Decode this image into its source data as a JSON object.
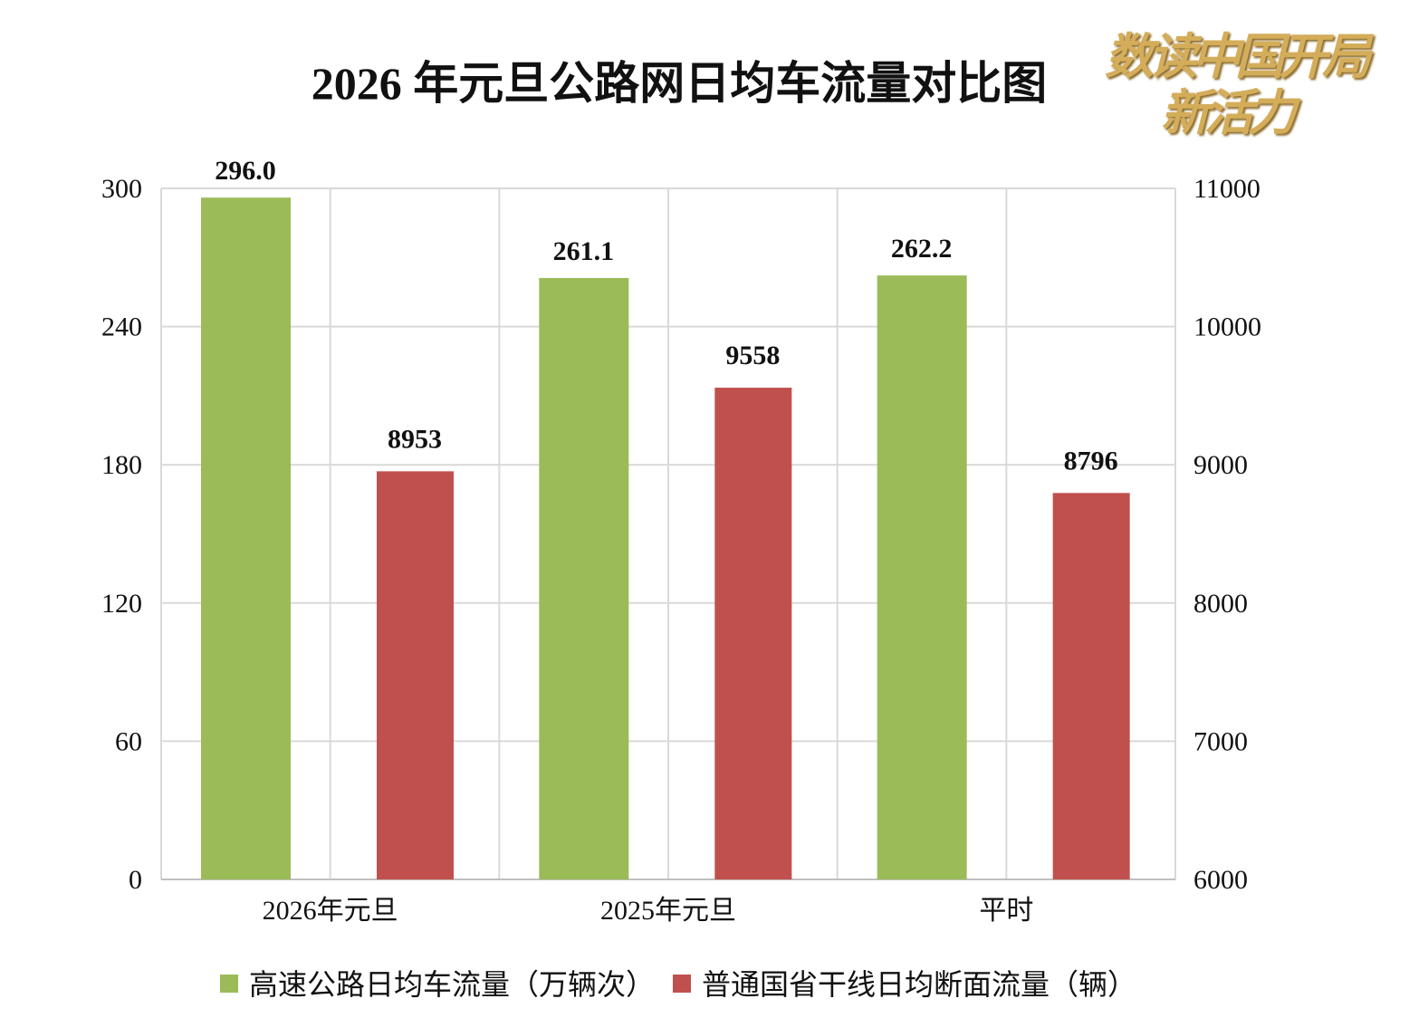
{
  "logo_text": [
    "数读中国开局",
    "新活力"
  ],
  "colors": {
    "series1": "#9bbb59",
    "series2": "#c0504d",
    "grid": "#d9d9d9"
  },
  "chart_data": {
    "type": "bar",
    "title": "2026 年元旦公路网日均车流量对比图",
    "categories": [
      "2026年元旦",
      "2025年元旦",
      "平时"
    ],
    "series": [
      {
        "name": "高速公路日均车流量（万辆次）",
        "axis": "left",
        "values": [
          296.0,
          261.1,
          262.2
        ],
        "labels": [
          "296.0",
          "261.1",
          "262.2"
        ]
      },
      {
        "name": "普通国省干线日均断面流量（辆）",
        "axis": "right",
        "values": [
          8953,
          9558,
          8796
        ],
        "labels": [
          "8953",
          "9558",
          "8796"
        ]
      }
    ],
    "y_left": {
      "range": [
        0,
        300
      ],
      "ticks": [
        "0",
        "60",
        "120",
        "180",
        "240",
        "300"
      ]
    },
    "y_right": {
      "range": [
        6000,
        11000
      ],
      "ticks": [
        "6000",
        "7000",
        "8000",
        "9000",
        "10000",
        "11000"
      ]
    },
    "grid": true,
    "legend": "bottom"
  }
}
